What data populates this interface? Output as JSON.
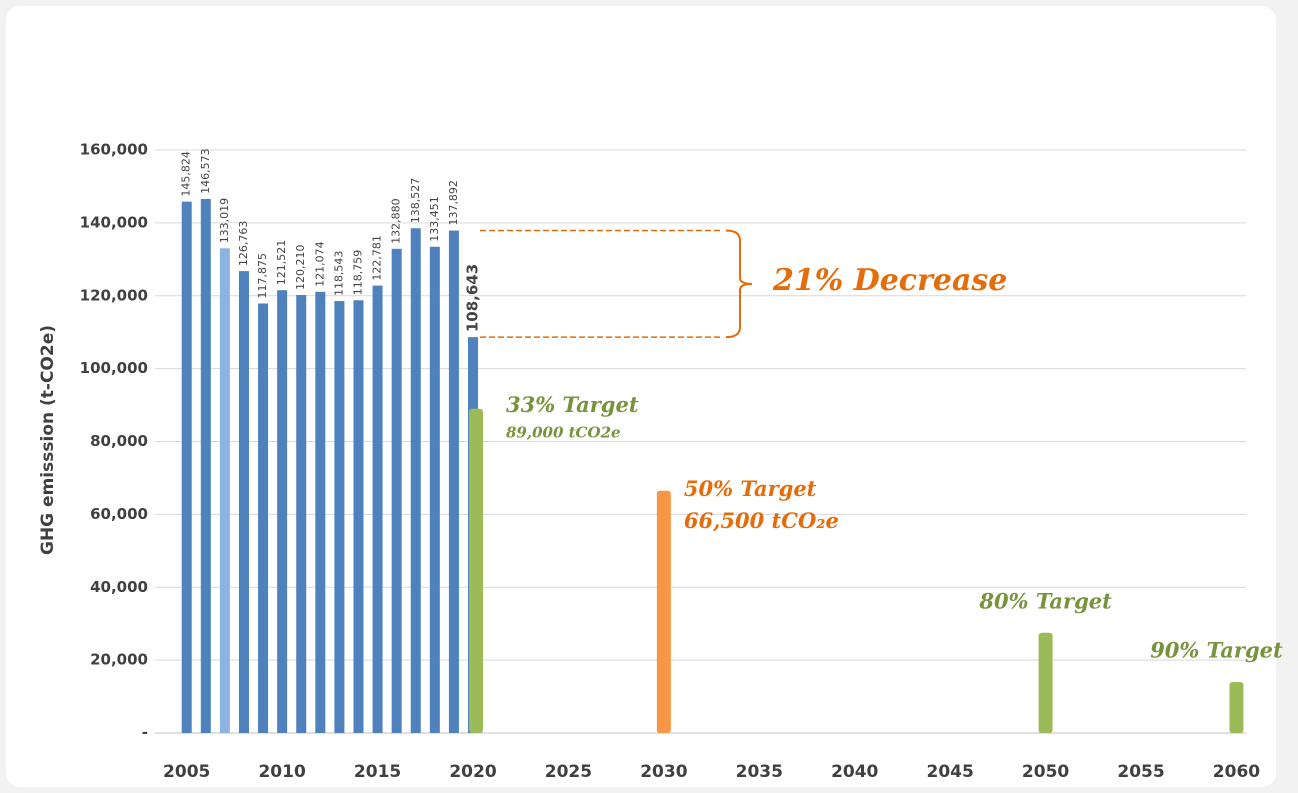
{
  "chart_data": {
    "type": "bar",
    "y_label": "GHG emisssion (t-CO2e)",
    "annotation": "21% Decrease",
    "x": [
      2005,
      2006,
      2007,
      2008,
      2009,
      2010,
      2011,
      2012,
      2013,
      2014,
      2015,
      2016,
      2017,
      2018,
      2019,
      2020
    ],
    "values": [
      145824,
      146573,
      133019,
      126763,
      117875,
      121521,
      120210,
      121074,
      118543,
      118759,
      122781,
      132880,
      138527,
      133451,
      137892,
      108643
    ],
    "value_labels": [
      "145,824",
      "146,573",
      "133,019",
      "126,763",
      "117,875",
      "121,521",
      "120,210",
      "121,074",
      "118,543",
      "118,759",
      "122,781",
      "132,880",
      "138,527",
      "133,451",
      "137,892",
      "108,643"
    ],
    "colors": [
      "#4f81bd",
      "#4f81bd",
      "#8db3e2",
      "#4f81bd",
      "#4f81bd",
      "#4f81bd",
      "#4f81bd",
      "#4f81bd",
      "#4f81bd",
      "#4f81bd",
      "#4f81bd",
      "#4f81bd",
      "#4f81bd",
      "#4f81bd",
      "#4f81bd",
      "#4f81bd"
    ],
    "value_label_colors": [
      "#444444",
      "#444444",
      "#444444",
      "#444444",
      "#444444",
      "#444444",
      "#444444",
      "#444444",
      "#444444",
      "#444444",
      "#444444",
      "#444444",
      "#444444",
      "#444444",
      "#444444",
      "#4f81d9"
    ],
    "targets": [
      {
        "x": 2020,
        "value": 89000,
        "color": "#9bbb59",
        "text_color": "#77933c",
        "label": "33% Target",
        "note": "89,000 tCO2e"
      },
      {
        "x": 2030,
        "value": 66500,
        "color": "#f79646",
        "text_color": "#e46c0a",
        "label": "50% Target",
        "note": "66,500 tCO₂e"
      },
      {
        "x": 2050,
        "value": 27500,
        "color": "#9bbb59",
        "text_color": "#77933c",
        "label": "80% Target"
      },
      {
        "x": 2060,
        "value": 14000,
        "color": "#9bbb59",
        "text_color": "#77933c",
        "label": "90% Target"
      }
    ],
    "xlim": [
      2002.5,
      2060.5
    ],
    "xticks": [
      2005,
      2010,
      2015,
      2020,
      2025,
      2030,
      2035,
      2040,
      2045,
      2050,
      2055,
      2060
    ],
    "ylim": [
      0,
      160000
    ],
    "yticks": [
      {
        "value": 0,
        "label": "-"
      },
      {
        "value": 20000,
        "label": "20,000"
      },
      {
        "value": 40000,
        "label": "40,000"
      },
      {
        "value": 60000,
        "label": "60,000"
      },
      {
        "value": 80000,
        "label": "80,000"
      },
      {
        "value": 100000,
        "label": "100,000"
      },
      {
        "value": 120000,
        "label": "120,000"
      },
      {
        "value": 140000,
        "label": "140,000"
      },
      {
        "value": 160000,
        "label": "160,000"
      }
    ],
    "grid": true
  }
}
